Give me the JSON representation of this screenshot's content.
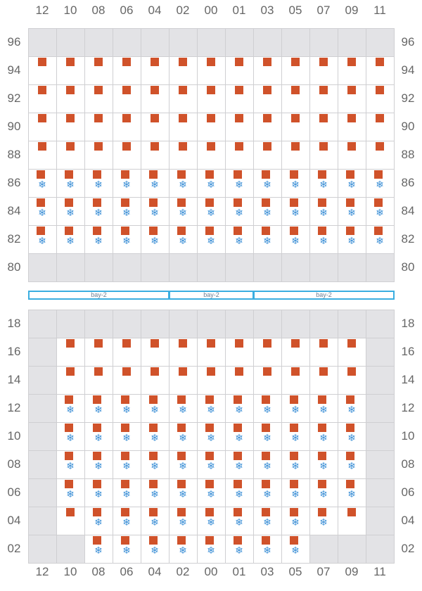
{
  "columns": [
    "12",
    "10",
    "08",
    "06",
    "04",
    "02",
    "00",
    "01",
    "03",
    "05",
    "07",
    "09",
    "11"
  ],
  "colors": {
    "container": "#d0522a",
    "reefer": "#3b8fd6",
    "void": "#e3e3e6",
    "bay": "#3aaee0"
  },
  "icons": {
    "container": "square-marker",
    "reefer": "snowflake-icon"
  },
  "reefer_glyph": "❄",
  "deck": {
    "name": "above-deck",
    "tiers": [
      "96",
      "94",
      "92",
      "90",
      "88",
      "86",
      "84",
      "82",
      "80"
    ],
    "rows": [
      {
        "tier": "96",
        "cells": "VVVVVVVVVVVVV"
      },
      {
        "tier": "94",
        "cells": "CCCCCCCCCCCCC"
      },
      {
        "tier": "92",
        "cells": "CCCCCCCCCCCCC"
      },
      {
        "tier": "90",
        "cells": "CCCCCCCCCCCCC"
      },
      {
        "tier": "88",
        "cells": "CCCCCCCCCCCCC"
      },
      {
        "tier": "86",
        "cells": "RRRRRRRRRRRRR"
      },
      {
        "tier": "84",
        "cells": "RRRRRRRRRRRRR"
      },
      {
        "tier": "82",
        "cells": "RRRRRRRRRRRRR"
      },
      {
        "tier": "80",
        "cells": "VVVVVVVVVVVVV"
      }
    ]
  },
  "hold": {
    "name": "below-deck",
    "tiers": [
      "18",
      "16",
      "14",
      "12",
      "10",
      "08",
      "06",
      "04",
      "02"
    ],
    "rows": [
      {
        "tier": "18",
        "cells": "VVVVVVVVVVVVV"
      },
      {
        "tier": "16",
        "cells": "VCCCCCCCCCCCV"
      },
      {
        "tier": "14",
        "cells": "VCCCCCCCCCCCV"
      },
      {
        "tier": "12",
        "cells": "VRRRRRRRRRRRV"
      },
      {
        "tier": "10",
        "cells": "VRRRRRRRRRRRV"
      },
      {
        "tier": "08",
        "cells": "VRRRRRRRRRRRV"
      },
      {
        "tier": "06",
        "cells": "VRRRRRRRRRRRV"
      },
      {
        "tier": "04",
        "cells": "VCRRRRRRRRRCV"
      },
      {
        "tier": "02",
        "cells": "VVFFFFFFFFVVV"
      }
    ]
  },
  "bays": [
    {
      "label": "bay-2",
      "from": 0,
      "to": 4
    },
    {
      "label": "bay-2",
      "from": 5,
      "to": 7
    },
    {
      "label": "bay-2",
      "from": 8,
      "to": 12
    }
  ]
}
